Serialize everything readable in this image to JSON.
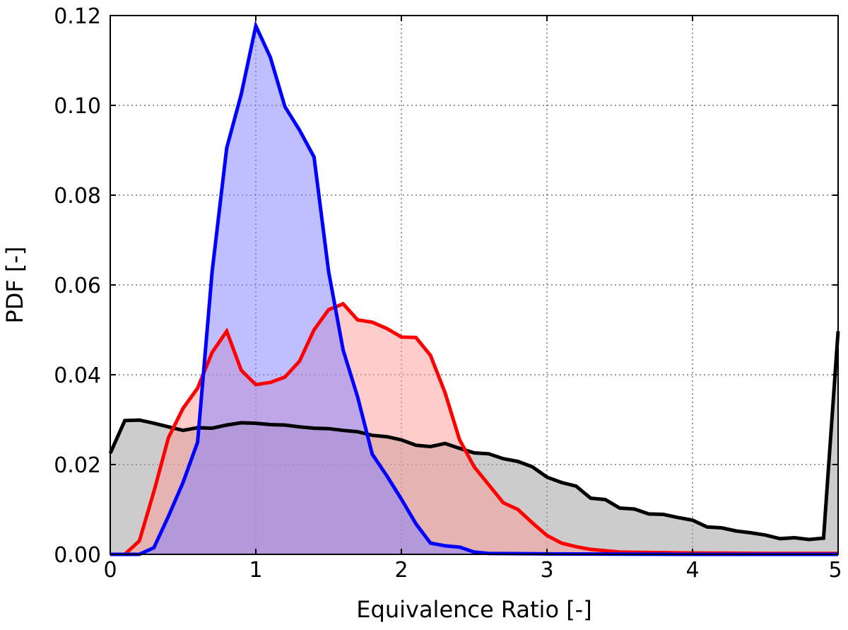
{
  "chart_data": {
    "type": "area",
    "title": "",
    "xlabel": "Equivalence Ratio [-]",
    "ylabel": "PDF [-]",
    "xlim": [
      0,
      5
    ],
    "ylim": [
      0,
      0.12
    ],
    "xticks": [
      0,
      1,
      2,
      3,
      4,
      5
    ],
    "xtick_labels": [
      "0",
      "1",
      "2",
      "3",
      "4",
      "5"
    ],
    "yticks": [
      0,
      0.02,
      0.04,
      0.06,
      0.08,
      0.1,
      0.12
    ],
    "ytick_labels": [
      "0.00",
      "0.02",
      "0.04",
      "0.06",
      "0.08",
      "0.10",
      "0.12"
    ],
    "grid": true,
    "legend": "none",
    "series": [
      {
        "color": "#000000",
        "fill": "#999999",
        "x": [
          0.0,
          0.1,
          0.2,
          0.3,
          0.4,
          0.5,
          0.6,
          0.7,
          0.8,
          0.9,
          1.0,
          1.1,
          1.2,
          1.3,
          1.4,
          1.5,
          1.6,
          1.7,
          1.8,
          1.9,
          2.0,
          2.1,
          2.2,
          2.3,
          2.4,
          2.5,
          2.6,
          2.7,
          2.8,
          2.9,
          3.0,
          3.1,
          3.2,
          3.3,
          3.4,
          3.5,
          3.6,
          3.7,
          3.8,
          3.9,
          4.0,
          4.1,
          4.2,
          4.3,
          4.4,
          4.5,
          4.6,
          4.7,
          4.8,
          4.9,
          5.0
        ],
        "y": [
          0.0225,
          0.0298,
          0.0299,
          0.0292,
          0.0284,
          0.0276,
          0.0282,
          0.0281,
          0.0288,
          0.0293,
          0.0292,
          0.0289,
          0.0288,
          0.0284,
          0.0281,
          0.028,
          0.0276,
          0.0273,
          0.0265,
          0.0262,
          0.0255,
          0.0243,
          0.024,
          0.0247,
          0.0236,
          0.0226,
          0.0224,
          0.0213,
          0.0207,
          0.0195,
          0.0172,
          0.016,
          0.0152,
          0.0125,
          0.0122,
          0.0103,
          0.0101,
          0.009,
          0.0089,
          0.0082,
          0.0076,
          0.0061,
          0.0059,
          0.0052,
          0.0048,
          0.0043,
          0.0035,
          0.0037,
          0.0033,
          0.0036,
          0.0497
        ]
      },
      {
        "color": "#ff0000",
        "fill": "#ff9999",
        "x": [
          0.0,
          0.1,
          0.2,
          0.3,
          0.4,
          0.5,
          0.6,
          0.7,
          0.8,
          0.9,
          1.0,
          1.1,
          1.2,
          1.3,
          1.4,
          1.5,
          1.6,
          1.7,
          1.8,
          1.9,
          2.0,
          2.1,
          2.2,
          2.3,
          2.4,
          2.5,
          2.6,
          2.7,
          2.8,
          2.9,
          3.0,
          3.1,
          3.2,
          3.3,
          3.4,
          3.5,
          4.0,
          4.5,
          5.0
        ],
        "y": [
          0.0,
          0.0,
          0.003,
          0.014,
          0.026,
          0.0325,
          0.037,
          0.045,
          0.0497,
          0.041,
          0.0378,
          0.0383,
          0.0395,
          0.043,
          0.05,
          0.0545,
          0.0558,
          0.0522,
          0.0517,
          0.0503,
          0.0484,
          0.0483,
          0.0443,
          0.036,
          0.0255,
          0.0195,
          0.0155,
          0.0115,
          0.01,
          0.007,
          0.0042,
          0.0025,
          0.0017,
          0.0011,
          0.0008,
          0.0005,
          0.0003,
          0.0002,
          0.0002
        ]
      },
      {
        "color": "#0000ff",
        "fill": "#8080ff",
        "x": [
          0.0,
          0.1,
          0.2,
          0.3,
          0.4,
          0.5,
          0.6,
          0.7,
          0.8,
          0.9,
          1.0,
          1.1,
          1.2,
          1.3,
          1.4,
          1.5,
          1.6,
          1.7,
          1.8,
          1.9,
          2.0,
          2.1,
          2.2,
          2.3,
          2.4,
          2.5,
          2.6,
          3.0,
          4.0,
          5.0
        ],
        "y": [
          0.0,
          0.0,
          0.0,
          0.0015,
          0.0085,
          0.016,
          0.025,
          0.063,
          0.0905,
          0.1025,
          0.1177,
          0.1107,
          0.0997,
          0.0945,
          0.0885,
          0.063,
          0.0455,
          0.035,
          0.0223,
          0.0175,
          0.0123,
          0.0068,
          0.0025,
          0.0019,
          0.0016,
          0.0005,
          0.0002,
          0.0001,
          0.0,
          0.0
        ]
      }
    ]
  }
}
